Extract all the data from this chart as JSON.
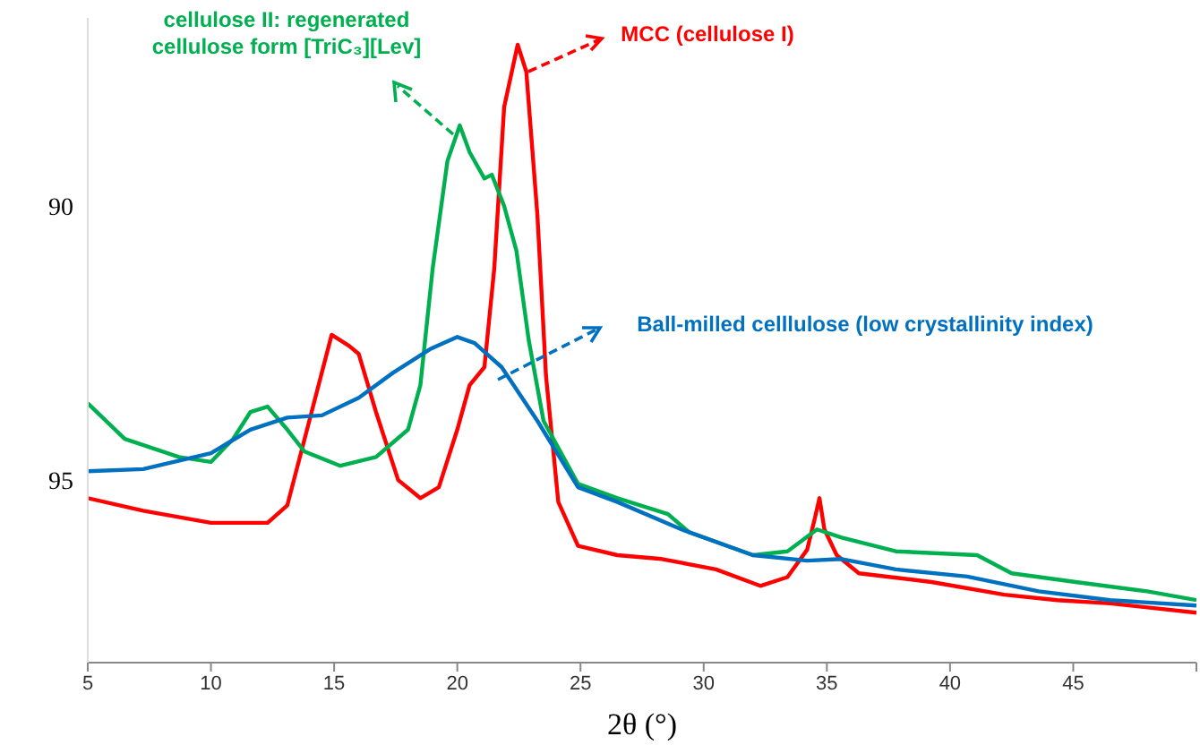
{
  "chart_data": {
    "type": "line",
    "xlabel": "2θ (°)",
    "xlim": [
      5,
      50
    ],
    "xticks": [
      5,
      10,
      15,
      20,
      25,
      30,
      35,
      40,
      45,
      {
        "value": 50,
        "label": null
      }
    ],
    "ylim": [
      98.33,
      86.57
    ],
    "yticks": [
      90,
      95
    ],
    "marker": "none",
    "legend": "top",
    "line_style": "solid",
    "series": [
      {
        "name": "MCC (cellulose I)",
        "color": "#ff0000",
        "x": [
          5,
          7.25,
          10,
          12.3,
          13.1,
          13.9,
          14.9,
          15.6,
          16,
          16.7,
          17.6,
          18.5,
          19.25,
          20,
          20.5,
          21.1,
          21.5,
          21.9,
          22.45,
          22.8,
          23.25,
          23.6,
          24.1,
          24.9,
          26.5,
          28.3,
          30.5,
          32.3,
          33.4,
          34.2,
          34.5,
          34.7,
          34.9,
          35.4,
          36.3,
          39.25,
          42.2,
          44.35,
          46.5,
          50
        ],
        "values": [
          95.33,
          95.56,
          95.78,
          95.78,
          95.46,
          94.08,
          92.35,
          92.55,
          92.7,
          93.76,
          95.0,
          95.33,
          95.13,
          94.08,
          93.27,
          92.94,
          91.14,
          88.2,
          87.06,
          87.55,
          90.16,
          93.1,
          95.4,
          96.2,
          96.37,
          96.44,
          96.63,
          96.93,
          96.77,
          96.27,
          95.72,
          95.33,
          95.9,
          96.37,
          96.7,
          96.86,
          97.09,
          97.19,
          97.25,
          97.42
        ]
      },
      {
        "name": "cellulose II: regenerated cellulose form [TriC₃][Lev]",
        "color": "#00b050",
        "x": [
          5,
          6.5,
          8.7,
          10,
          10.9,
          11.6,
          12.3,
          13.1,
          13.8,
          15.25,
          16.7,
          18,
          18.5,
          19,
          19.6,
          20.1,
          20.5,
          21.1,
          21.4,
          21.9,
          22.4,
          22.9,
          23.5,
          24.9,
          26.5,
          28.55,
          29.4,
          32,
          33.4,
          34.6,
          35.6,
          37.8,
          41.1,
          42.5,
          45.1,
          48,
          50
        ],
        "values": [
          93.6,
          94.25,
          94.58,
          94.67,
          94.25,
          93.76,
          93.66,
          94.08,
          94.48,
          94.74,
          94.58,
          94.08,
          93.27,
          91.14,
          89.18,
          88.53,
          89.02,
          89.5,
          89.43,
          90,
          90.82,
          92.45,
          93.92,
          95.07,
          95.33,
          95.62,
          95.95,
          96.37,
          96.3,
          95.9,
          96.05,
          96.3,
          96.37,
          96.7,
          96.86,
          97.03,
          97.19
        ]
      },
      {
        "name": "Ball-milled celllulose (low crystallinity index)",
        "color": "#0070c0",
        "x": [
          5,
          7.25,
          10,
          11.6,
          13.1,
          14.5,
          16,
          17.4,
          18.9,
          20,
          20.7,
          21.8,
          23.25,
          24.9,
          26.5,
          29.1,
          32,
          34.2,
          35.6,
          37.8,
          40.7,
          43.6,
          46.5,
          50
        ],
        "values": [
          94.84,
          94.8,
          94.51,
          94.08,
          93.86,
          93.82,
          93.5,
          93.04,
          92.61,
          92.39,
          92.5,
          92.94,
          93.92,
          95.13,
          95.4,
          95.9,
          96.37,
          96.47,
          96.44,
          96.63,
          96.76,
          97.03,
          97.19,
          97.29
        ]
      }
    ]
  }
}
